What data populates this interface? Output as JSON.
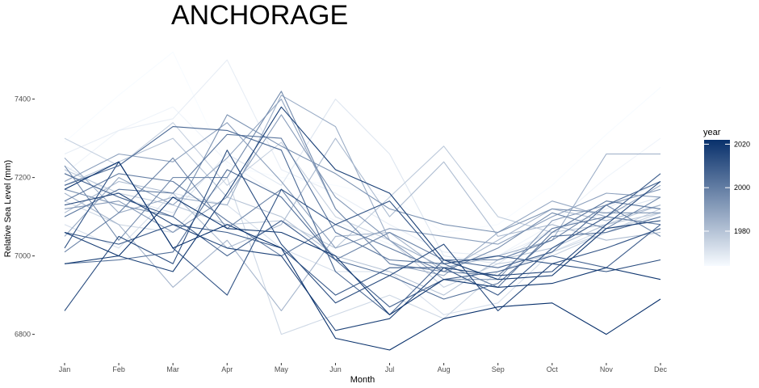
{
  "chart_data": {
    "type": "line",
    "title": "ANCHORAGE",
    "xlabel": "Month",
    "ylabel": "Relative Sea Level (mm)",
    "categories": [
      "Jan",
      "Feb",
      "Mar",
      "Apr",
      "May",
      "Jun",
      "Jul",
      "Aug",
      "Sep",
      "Oct",
      "Nov",
      "Dec"
    ],
    "y_ticks": [
      6800,
      7000,
      7200,
      7400
    ],
    "ylim": [
      6725,
      7560
    ],
    "grid": false,
    "legend": {
      "title": "year",
      "position": "right",
      "type": "colorbar",
      "range": [
        1964,
        2022
      ],
      "ticks": [
        1980,
        2000,
        2020
      ],
      "low_color": "#f7fbff",
      "high_color": "#08306b"
    },
    "series": [
      {
        "year": 1964,
        "values": [
          7290,
          7410,
          7520,
          7230,
          7200,
          7180,
          7150,
          7060,
          7080,
          7180,
          7310,
          7430
        ]
      },
      {
        "year": 1966,
        "values": [
          7210,
          7320,
          7380,
          7240,
          7150,
          7090,
          7030,
          6990,
          7000,
          7080,
          7200,
          7300
        ]
      },
      {
        "year": 1968,
        "values": [
          7260,
          7320,
          7350,
          7500,
          7220,
          7160,
          7080,
          7010,
          7000,
          7060,
          7120,
          7190
        ]
      },
      {
        "year": 1970,
        "values": [
          7230,
          7150,
          7110,
          7260,
          7180,
          7400,
          7260,
          7000,
          6980,
          7070,
          7110,
          7150
        ]
      },
      {
        "year": 1972,
        "values": [
          7080,
          7020,
          7160,
          7130,
          7020,
          6960,
          6960,
          6850,
          6880,
          7010,
          7070,
          7100
        ]
      },
      {
        "year": 1974,
        "values": [
          7140,
          7080,
          7060,
          7200,
          6800,
          6850,
          6900,
          6840,
          6960,
          7010,
          7060,
          7110
        ]
      },
      {
        "year": 1976,
        "values": [
          7300,
          7230,
          7340,
          7180,
          7290,
          7100,
          7040,
          6920,
          6980,
          7000,
          7060,
          7120
        ]
      },
      {
        "year": 1978,
        "values": [
          7220,
          7160,
          7130,
          7080,
          7090,
          7020,
          7150,
          7280,
          7100,
          7060,
          7080,
          7110
        ]
      },
      {
        "year": 1980,
        "values": [
          7180,
          7240,
          7300,
          7150,
          7100,
          7000,
          6960,
          6900,
          6990,
          7020,
          7080,
          7130
        ]
      },
      {
        "year": 1982,
        "values": [
          7110,
          7190,
          7160,
          7020,
          7080,
          7300,
          7100,
          7240,
          7050,
          7080,
          7040,
          7060
        ]
      },
      {
        "year": 1984,
        "values": [
          7160,
          7080,
          6920,
          7040,
          6860,
          7050,
          7060,
          6960,
          7040,
          7120,
          7090,
          7130
        ]
      },
      {
        "year": 1986,
        "values": [
          7250,
          7110,
          7150,
          7130,
          7410,
          7330,
          7040,
          6970,
          7000,
          7040,
          7260,
          7260
        ]
      },
      {
        "year": 1988,
        "values": [
          7050,
          7200,
          7130,
          7250,
          7400,
          7120,
          6980,
          6950,
          7060,
          7140,
          7100,
          7180
        ]
      },
      {
        "year": 1990,
        "values": [
          7190,
          7260,
          7240,
          7340,
          7190,
          7020,
          7070,
          7050,
          7030,
          7100,
          7160,
          7150
        ]
      },
      {
        "year": 1992,
        "values": [
          7120,
          7140,
          7060,
          7150,
          7360,
          7150,
          7040,
          6940,
          6940,
          7090,
          7130,
          7170
        ]
      },
      {
        "year": 1994,
        "values": [
          7170,
          7130,
          7100,
          7360,
          7280,
          7210,
          7120,
          7080,
          7060,
          7120,
          7110,
          7110
        ]
      },
      {
        "year": 1996,
        "values": [
          7230,
          7040,
          7200,
          7200,
          7420,
          7120,
          6980,
          6960,
          7020,
          7110,
          7070,
          7150
        ]
      },
      {
        "year": 1998,
        "values": [
          7010,
          7110,
          7250,
          7070,
          7170,
          6990,
          7060,
          6990,
          6990,
          7040,
          7130,
          7050
        ]
      },
      {
        "year": 2000,
        "values": [
          7140,
          7210,
          7190,
          7090,
          7000,
          7080,
          7020,
          6960,
          6950,
          7070,
          7100,
          7080
        ]
      },
      {
        "year": 2002,
        "values": [
          7100,
          7170,
          7160,
          7310,
          7300,
          7060,
          6990,
          6980,
          6920,
          7060,
          7140,
          7120
        ]
      },
      {
        "year": 2004,
        "values": [
          6980,
          6990,
          7010,
          7220,
          7150,
          6990,
          6950,
          6890,
          6930,
          7050,
          7060,
          7100
        ]
      },
      {
        "year": 2006,
        "values": [
          7180,
          7230,
          7330,
          7320,
          7270,
          6960,
          6850,
          6990,
          6970,
          7010,
          7130,
          7190
        ]
      },
      {
        "year": 2008,
        "values": [
          7210,
          7150,
          7100,
          7000,
          7090,
          6990,
          6870,
          6940,
          6960,
          7000,
          6970,
          7080
        ]
      },
      {
        "year": 2010,
        "values": [
          7060,
          7030,
          7080,
          7060,
          7020,
          6900,
          6970,
          6970,
          6900,
          7020,
          7100,
          7210
        ]
      },
      {
        "year": 2012,
        "values": [
          7020,
          7240,
          7020,
          6900,
          7170,
          7080,
          7140,
          6980,
          7000,
          6980,
          7020,
          7070
        ]
      },
      {
        "year": 2014,
        "values": [
          6860,
          7050,
          6980,
          7270,
          7030,
          6880,
          6950,
          7030,
          6860,
          6980,
          6960,
          6990
        ]
      },
      {
        "year": 2016,
        "values": [
          7130,
          7160,
          7080,
          7020,
          7000,
          6810,
          6840,
          6970,
          6950,
          6960,
          7080,
          7190
        ]
      },
      {
        "year": 2018,
        "values": [
          6980,
          7000,
          6960,
          7160,
          7380,
          7220,
          7160,
          6990,
          6940,
          6950,
          7070,
          7090
        ]
      },
      {
        "year": 2020,
        "values": [
          7060,
          7000,
          7150,
          7070,
          7060,
          7000,
          6850,
          6940,
          6920,
          6930,
          6970,
          6940
        ]
      },
      {
        "year": 2022,
        "values": [
          7170,
          7240,
          7020,
          7080,
          7020,
          6790,
          6760,
          6840,
          6870,
          6880,
          6800,
          6890
        ]
      }
    ]
  }
}
